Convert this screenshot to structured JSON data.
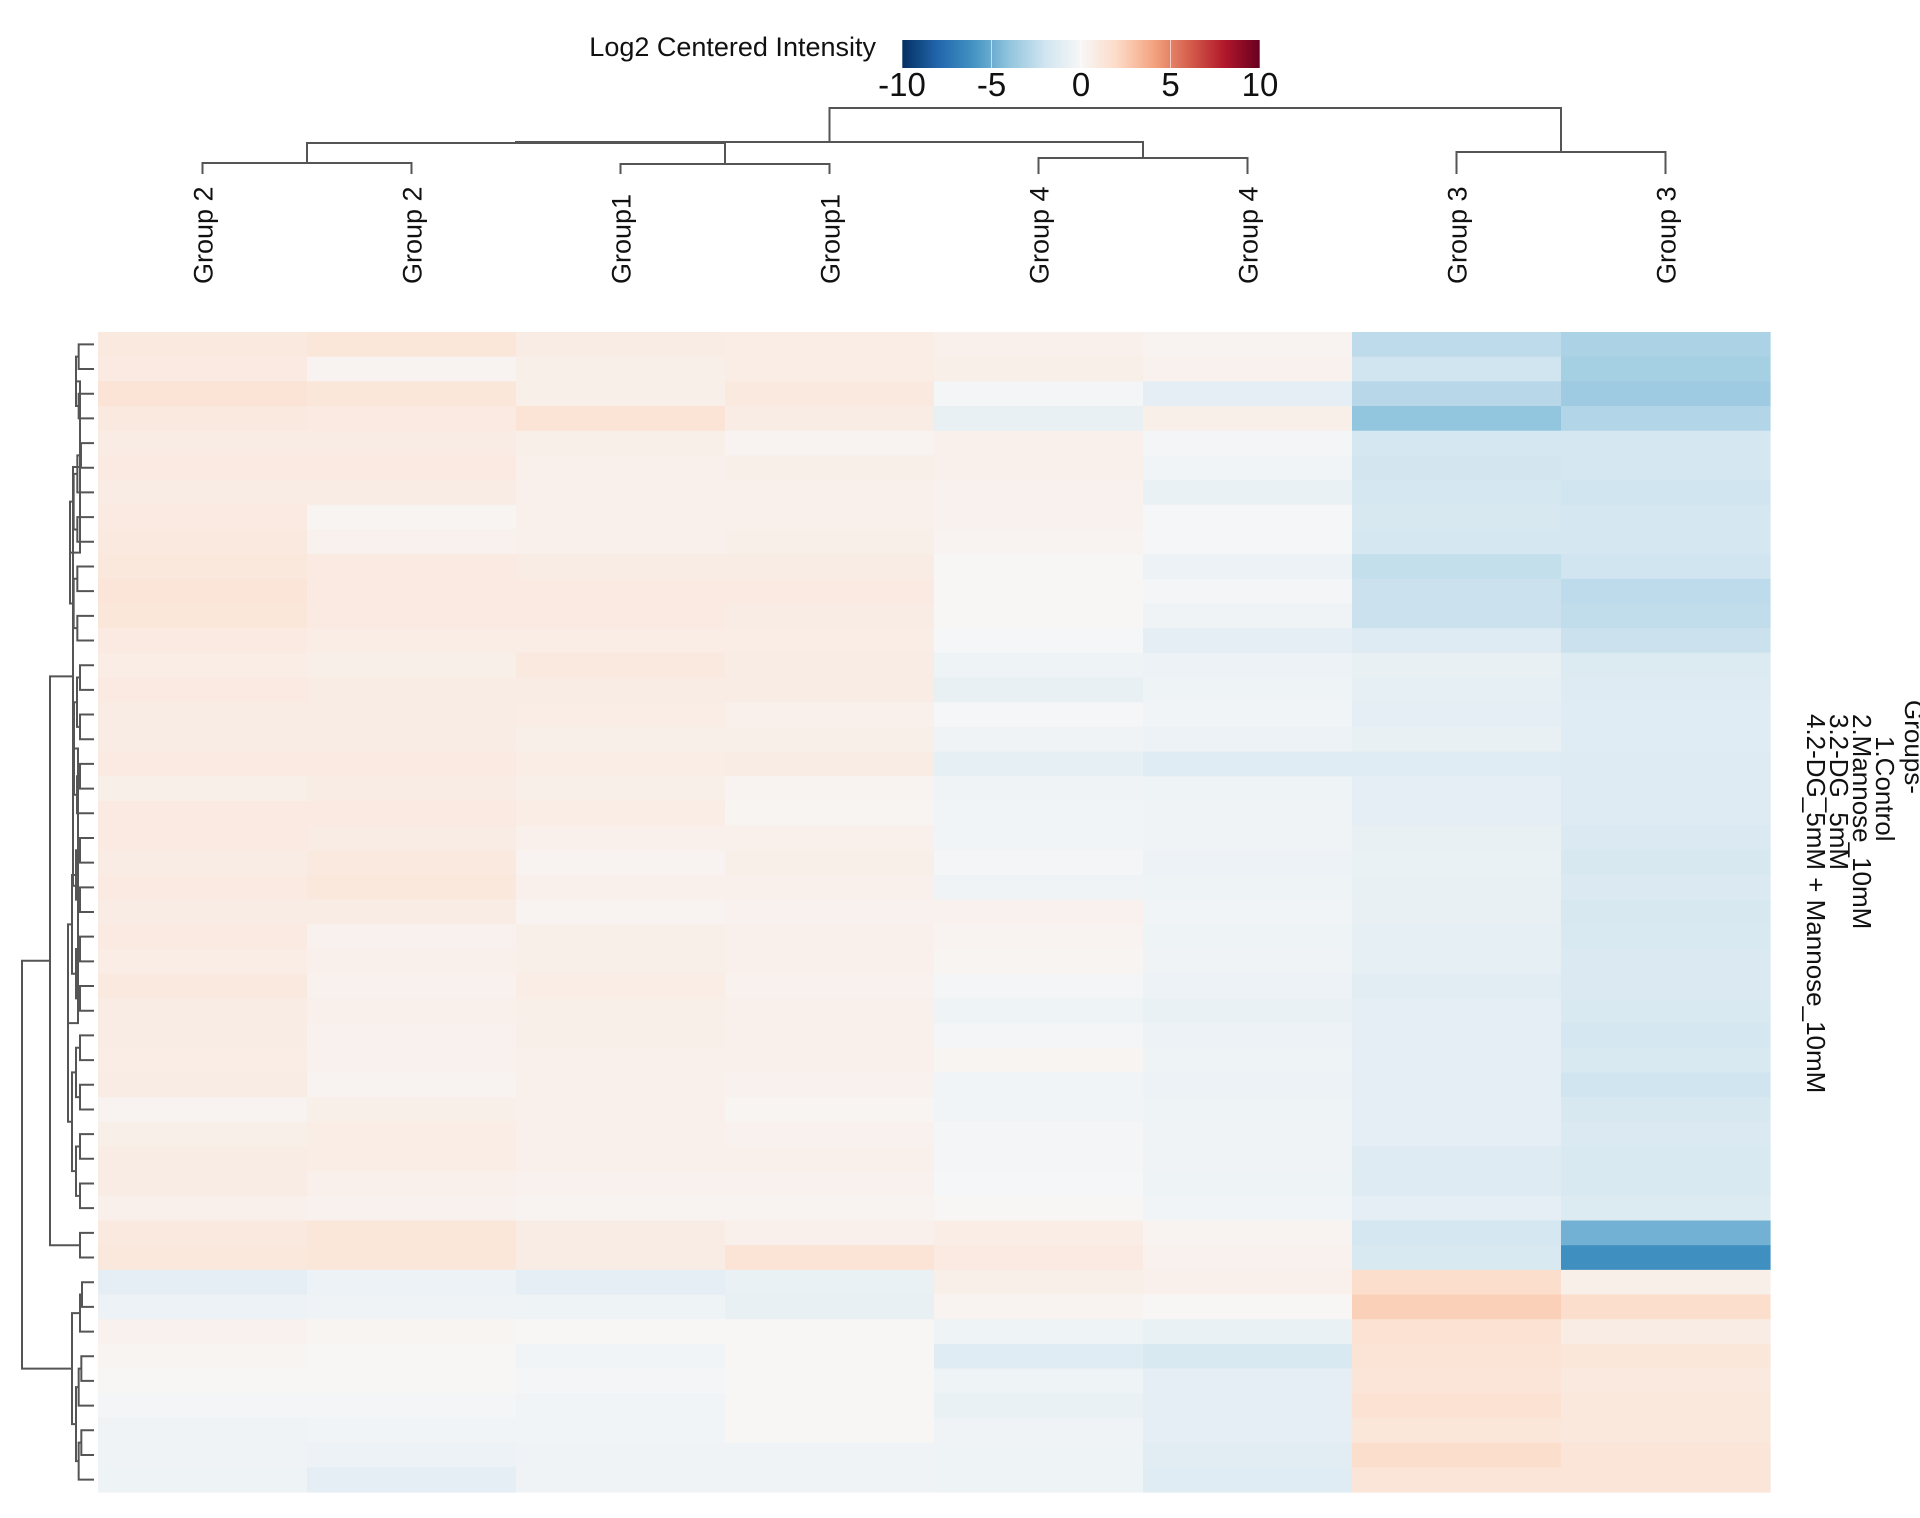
{
  "chart_data": {
    "type": "heatmap",
    "legend": {
      "title": "Log2 Centered Intensity",
      "ticks": [
        -10,
        -5,
        0,
        5,
        10
      ],
      "tick_labels": [
        "-10",
        "-5",
        "0",
        "5",
        "10"
      ],
      "range": [
        -10,
        10
      ],
      "placement": "top-center"
    },
    "columns": [
      "Group 2",
      "Group 2",
      "Group1",
      "Group1",
      "Group 4",
      "Group 4",
      "Group 3",
      "Group 3"
    ],
    "values": [
      [
        1.0,
        1.2,
        0.8,
        0.7,
        0.5,
        0.3,
        -2.6,
        -3.2
      ],
      [
        0.9,
        0.3,
        0.6,
        0.7,
        0.6,
        0.4,
        -2.0,
        -3.4
      ],
      [
        1.4,
        1.2,
        0.6,
        1.0,
        -0.2,
        -1.0,
        -2.8,
        -3.6
      ],
      [
        1.0,
        0.9,
        1.4,
        0.8,
        -0.8,
        0.6,
        -4.0,
        -3.0
      ],
      [
        0.8,
        0.8,
        0.6,
        0.3,
        0.5,
        -0.2,
        -1.8,
        -1.8
      ],
      [
        0.9,
        0.9,
        0.5,
        0.6,
        0.5,
        -0.3,
        -1.9,
        -1.8
      ],
      [
        0.8,
        0.8,
        0.5,
        0.5,
        0.4,
        -0.7,
        -1.8,
        -2.0
      ],
      [
        0.9,
        0.2,
        0.5,
        0.5,
        0.4,
        -0.1,
        -1.7,
        -1.8
      ],
      [
        1.0,
        0.4,
        0.5,
        0.6,
        0.3,
        -0.1,
        -1.8,
        -1.8
      ],
      [
        1.1,
        0.9,
        0.8,
        0.8,
        0.1,
        -0.6,
        -2.4,
        -2.0
      ],
      [
        1.3,
        0.9,
        0.9,
        0.9,
        0.1,
        -0.2,
        -2.2,
        -2.6
      ],
      [
        1.2,
        0.9,
        0.9,
        0.8,
        0.1,
        -0.4,
        -2.2,
        -2.5
      ],
      [
        0.9,
        0.7,
        0.7,
        0.7,
        -0.1,
        -1.0,
        -1.3,
        -2.2
      ],
      [
        0.7,
        0.6,
        1.0,
        0.8,
        -0.5,
        -0.6,
        -0.8,
        -1.4
      ],
      [
        0.9,
        0.8,
        0.8,
        0.8,
        -0.8,
        -0.5,
        -0.9,
        -1.3
      ],
      [
        0.8,
        0.8,
        0.7,
        0.5,
        -0.1,
        -0.3,
        -1.0,
        -1.2
      ],
      [
        0.8,
        0.8,
        0.6,
        0.6,
        -0.4,
        -0.6,
        -0.8,
        -1.2
      ],
      [
        0.9,
        0.9,
        0.7,
        0.8,
        -0.9,
        -1.2,
        -1.2,
        -1.3
      ],
      [
        0.6,
        0.8,
        0.6,
        0.3,
        -0.4,
        -0.5,
        -1.0,
        -1.3
      ],
      [
        0.9,
        0.9,
        0.7,
        0.2,
        -0.3,
        -0.4,
        -1.0,
        -1.3
      ],
      [
        0.9,
        0.8,
        0.5,
        0.5,
        -0.3,
        -0.4,
        -0.8,
        -1.5
      ],
      [
        0.8,
        1.0,
        0.3,
        0.6,
        -0.2,
        -0.6,
        -0.7,
        -1.7
      ],
      [
        0.9,
        1.1,
        0.5,
        0.5,
        -0.4,
        -0.5,
        -0.8,
        -1.5
      ],
      [
        0.8,
        0.8,
        0.3,
        0.4,
        0.4,
        -0.3,
        -0.8,
        -1.7
      ],
      [
        0.9,
        0.4,
        0.6,
        0.5,
        0.3,
        -0.5,
        -0.9,
        -1.6
      ],
      [
        0.7,
        0.5,
        0.6,
        0.5,
        0.2,
        -0.4,
        -0.9,
        -1.5
      ],
      [
        1.0,
        0.4,
        0.7,
        0.4,
        -0.2,
        -0.6,
        -1.1,
        -1.5
      ],
      [
        0.8,
        0.5,
        0.6,
        0.5,
        -0.5,
        -0.7,
        -1.0,
        -1.6
      ],
      [
        0.8,
        0.4,
        0.6,
        0.5,
        -0.2,
        -0.6,
        -1.0,
        -1.8
      ],
      [
        0.7,
        0.4,
        0.5,
        0.5,
        0.2,
        -0.5,
        -1.0,
        -1.6
      ],
      [
        0.8,
        0.3,
        0.5,
        0.4,
        -0.3,
        -0.6,
        -1.0,
        -2.0
      ],
      [
        0.3,
        0.6,
        0.5,
        0.2,
        -0.3,
        -0.5,
        -1.0,
        -1.7
      ],
      [
        0.6,
        0.7,
        0.5,
        0.4,
        -0.2,
        -0.4,
        -1.0,
        -1.5
      ],
      [
        0.8,
        0.7,
        0.5,
        0.5,
        -0.2,
        -0.4,
        -1.3,
        -1.6
      ],
      [
        0.8,
        0.5,
        0.4,
        0.4,
        -0.1,
        -0.5,
        -1.3,
        -1.6
      ],
      [
        0.5,
        0.4,
        0.3,
        0.3,
        0.1,
        -0.3,
        -1.0,
        -1.4
      ],
      [
        1.0,
        1.2,
        0.8,
        0.5,
        0.7,
        0.3,
        -1.8,
        -4.8
      ],
      [
        1.1,
        1.2,
        0.8,
        1.4,
        0.9,
        0.4,
        -1.6,
        -6.2
      ],
      [
        -1.0,
        -0.6,
        -1.0,
        -0.7,
        0.6,
        0.5,
        1.8,
        0.6
      ],
      [
        -0.6,
        -0.4,
        -0.5,
        -0.8,
        0.3,
        0.1,
        2.4,
        1.8
      ],
      [
        0.4,
        0.2,
        0.1,
        0.1,
        -0.5,
        -0.7,
        1.5,
        0.8
      ],
      [
        0.2,
        0.1,
        -0.3,
        0.1,
        -1.2,
        -1.6,
        1.4,
        1.2
      ],
      [
        0.1,
        0.1,
        -0.2,
        0.1,
        -0.5,
        -1.0,
        1.3,
        1.0
      ],
      [
        -0.2,
        -0.2,
        -0.3,
        0.1,
        -0.7,
        -1.0,
        1.5,
        1.1
      ],
      [
        -0.4,
        -0.3,
        -0.3,
        0.1,
        -0.4,
        -1.0,
        1.2,
        1.1
      ],
      [
        -0.4,
        -0.6,
        -0.4,
        -0.4,
        -0.5,
        -1.1,
        1.8,
        1.3
      ],
      [
        -0.5,
        -1.0,
        -0.4,
        -0.4,
        -0.5,
        -1.2,
        1.3,
        1.3
      ]
    ],
    "groups_legend": {
      "title": "Groups-",
      "items": [
        "1.Control",
        "2.Mannose_10mM",
        "3.2-DG_5mM",
        "4.2-DG_5mM + Mannose_10mM"
      ]
    },
    "column_dendrogram": true,
    "row_dendrogram": true,
    "grid": false
  }
}
